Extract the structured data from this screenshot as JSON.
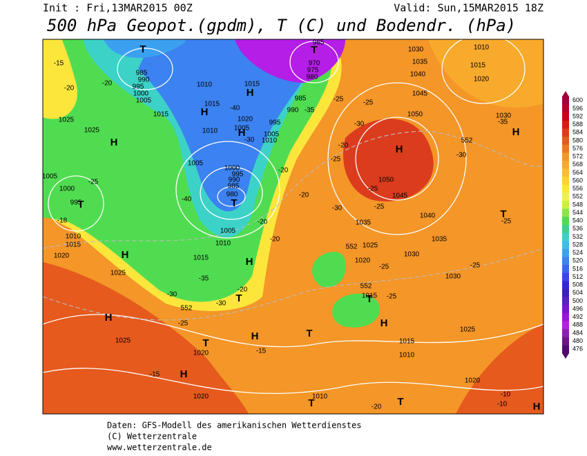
{
  "header": {
    "init": "Init : Fri,13MAR2015 00Z",
    "valid": "Valid: Sun,15MAR2015 18Z",
    "title": "500 hPa Geopot.(gpdm), T (C) und Bodendr. (hPa)"
  },
  "colorbar": {
    "ticks": [
      600,
      596,
      592,
      588,
      584,
      580,
      576,
      572,
      568,
      564,
      560,
      556,
      552,
      548,
      544,
      540,
      536,
      532,
      528,
      524,
      520,
      516,
      512,
      508,
      504,
      500,
      496,
      492,
      488,
      484,
      480,
      476
    ],
    "colors": [
      "#a0003c",
      "#b4002a",
      "#c80018",
      "#d21e14",
      "#dc3c1e",
      "#e65a1e",
      "#ee7820",
      "#f49628",
      "#f8aa2c",
      "#fabe30",
      "#fcd234",
      "#fce63c",
      "#f0f050",
      "#c8f040",
      "#8ce646",
      "#50dc50",
      "#3cd28c",
      "#3cd2c8",
      "#3cbee6",
      "#3ca0f0",
      "#3c82f0",
      "#3c64f0",
      "#3c46e6",
      "#3228d2",
      "#3c1ebe",
      "#5a1ec8",
      "#7814d2",
      "#9614dc",
      "#b41ee6",
      "#8c1eb4",
      "#6e148c",
      "#500a6e"
    ]
  },
  "map": {
    "labels": [
      "T",
      "985",
      "990",
      "995",
      "1000",
      "1005",
      "-15",
      "-20",
      "-20",
      "1010",
      "1015",
      "H",
      "T",
      "965",
      "970",
      "975",
      "980",
      "985",
      "990",
      "-35",
      "1030",
      "1035",
      "1040",
      "1045",
      "1050",
      "1010",
      "1015",
      "1020",
      "-25",
      "-25",
      "1015",
      "1015",
      "H",
      "-40",
      "1020",
      "1025",
      "1025",
      "H",
      "1010",
      "1005",
      "H",
      "995",
      "1005",
      "1010",
      "-30",
      "-35",
      "1030",
      "552",
      "H",
      "-30",
      "H",
      "-25",
      "-20",
      "-30",
      "1005",
      "1000",
      "995",
      "990",
      "985",
      "980",
      "T",
      "-20",
      "1050",
      "1045",
      "-25",
      "-20",
      "-30",
      "-25",
      "1040",
      "1035",
      "1035",
      "T",
      "-25",
      "1000",
      "995",
      "T",
      "-25",
      "1005",
      "-18",
      "1010",
      "1015",
      "1020",
      "H",
      "-40",
      "1005",
      "1010",
      "-20",
      "-20",
      "1015",
      "H",
      "-35",
      "1025",
      "-20",
      "T",
      "-30",
      "-30",
      "552",
      "-25",
      "H",
      "1025",
      "T",
      "H",
      "1020",
      "-15",
      "-15",
      "H",
      "1020",
      "552",
      "1025",
      "1020",
      "1030",
      "-25",
      "-25",
      "1030",
      "552",
      "1015",
      "-25",
      "T",
      "H",
      "T",
      "1025",
      "1015",
      "1010",
      "T",
      "1010",
      "-20",
      "T",
      "1020",
      "-10",
      "-10",
      "H"
    ]
  },
  "footer": {
    "line1": "Daten: GFS-Modell des amerikanischen Wetterdienstes",
    "line2": "(C) Wetterzentrale",
    "line3": "www.wetterzentrale.de"
  }
}
